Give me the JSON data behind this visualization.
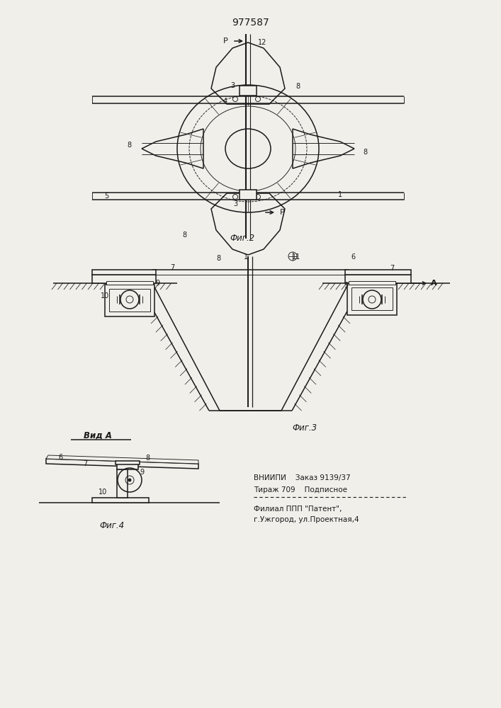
{
  "patent_number": "977587",
  "background_color": "#f0efea",
  "line_color": "#1a1a1a",
  "fig2_caption": "Фиг.2",
  "fig3_caption": "Фиг.3",
  "fig4_caption": "Фиг.4",
  "vid_A": "Вид A",
  "footer_line1": "ВНИИПИ    Заказ 9139/37",
  "footer_line2": "Тираж 709    Подписное",
  "footer_line3": "Филиал ППП \"Патент\",",
  "footer_line4": "г.Ужгород, ул.Проектная,4"
}
